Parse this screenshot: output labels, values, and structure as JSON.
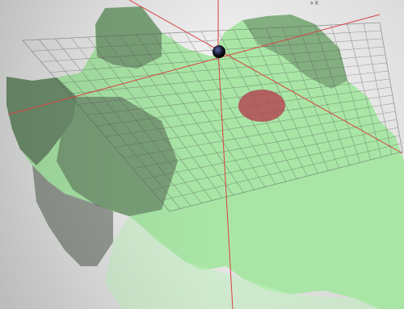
{
  "viewport": {
    "axis_label": "+X"
  },
  "colors": {
    "background": "#f2f2f2",
    "mesh_fill": "#a6e3a4",
    "mesh_shadow": "#3f4a3e",
    "grid_line": "#555555",
    "axis_line": "#d94040",
    "target_marker": "#b34a55",
    "pivot_sphere": "#1a1a2e"
  },
  "icons": {
    "pivot": "pivot-sphere-icon",
    "target": "target-marker-icon"
  }
}
